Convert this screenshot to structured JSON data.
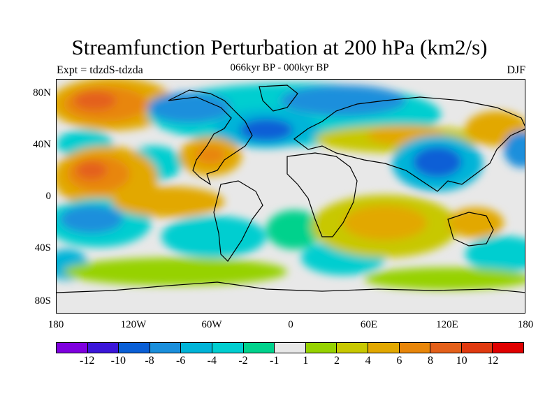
{
  "header": {
    "title": "Streamfunction Perturbation at 200 hPa (km2/s)",
    "subtitle": "066kyr BP - 000kyr BP",
    "experiment": "Expt = tdzdS-tdzda",
    "season": "DJF"
  },
  "map": {
    "projection": "cylindrical equidistant",
    "lat_labels": [
      "80N",
      "40N",
      "0",
      "40S",
      "80S"
    ],
    "lon_labels": [
      "180",
      "120W",
      "60W",
      "0",
      "60E",
      "120E",
      "180"
    ],
    "zero_band_color": "#e8e8e8",
    "coastline_color": "#000000"
  },
  "colorbar": {
    "colors": [
      "#7f00df",
      "#3b16d9",
      "#0a5fd6",
      "#1a8fdc",
      "#00b4d8",
      "#00ced0",
      "#00d28c",
      "#e8e8e8",
      "#96d200",
      "#c8c800",
      "#e2a800",
      "#e8860a",
      "#e4601a",
      "#e03a10",
      "#e00000"
    ],
    "labels": [
      "-12",
      "-10",
      "-8",
      "-6",
      "-4",
      "-2",
      "-1",
      "1",
      "2",
      "4",
      "6",
      "8",
      "10",
      "12"
    ]
  }
}
